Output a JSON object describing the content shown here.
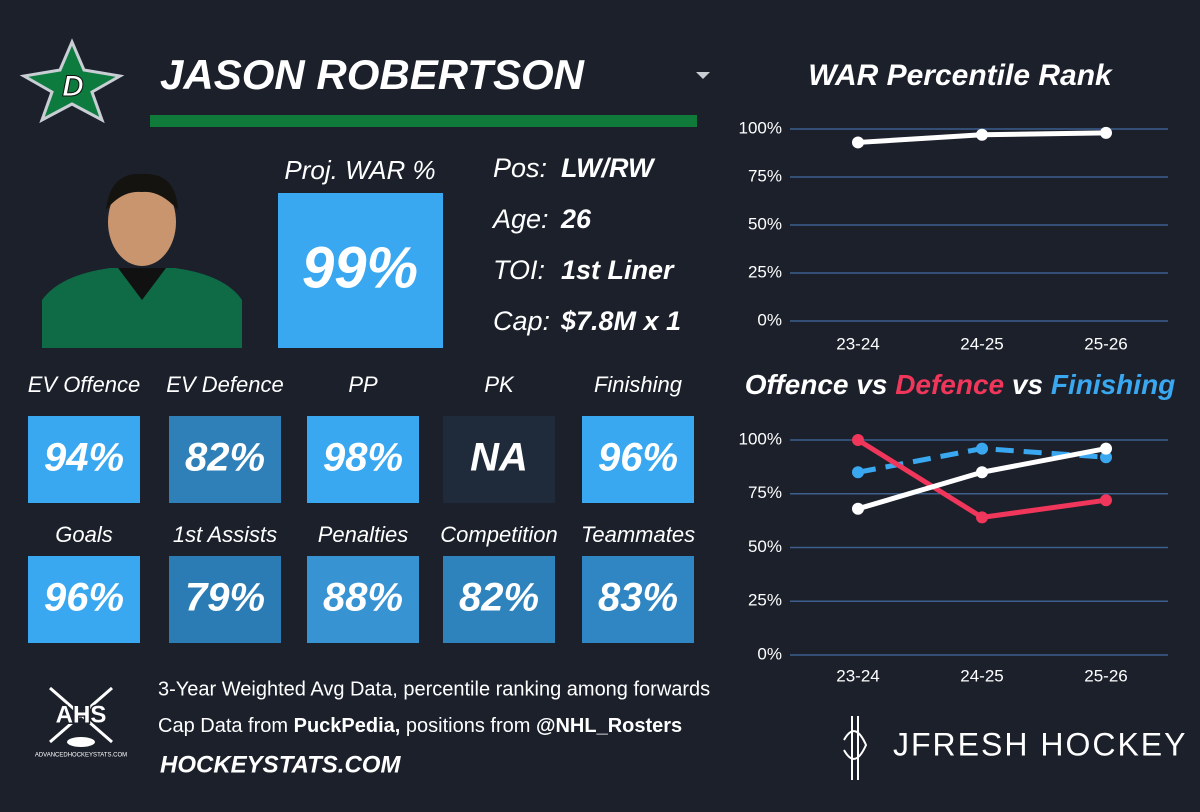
{
  "player": {
    "name": "JASON ROBERTSON",
    "headline_label": "Proj. WAR %",
    "headline_value": "99%",
    "headline_color": "#3aa8f0",
    "details": [
      {
        "label": "Pos:",
        "value": "LW/RW"
      },
      {
        "label": "Age:",
        "value": "26"
      },
      {
        "label": "TOI:",
        "value": "1st Liner"
      },
      {
        "label": "Cap:",
        "value": "$7.8M x 1"
      }
    ],
    "tiles": [
      {
        "label": "EV Offence",
        "value": "94%",
        "color": "#3aa8f0"
      },
      {
        "label": "EV Defence",
        "value": "82%",
        "color": "#2f80b8"
      },
      {
        "label": "PP",
        "value": "98%",
        "color": "#3aa8f0"
      },
      {
        "label": "PK",
        "value": "NA",
        "color": "#1f2a3a"
      },
      {
        "label": "Finishing",
        "value": "96%",
        "color": "#3aa8f0"
      },
      {
        "label": "Goals",
        "value": "96%",
        "color": "#3aa8f0"
      },
      {
        "label": "1st Assists",
        "value": "79%",
        "color": "#2b7cb5"
      },
      {
        "label": "Penalties",
        "value": "88%",
        "color": "#3893d3"
      },
      {
        "label": "Competition",
        "value": "82%",
        "color": "#2f83bd"
      },
      {
        "label": "Teammates",
        "value": "83%",
        "color": "#2f86c2"
      }
    ]
  },
  "footer": {
    "note": "3-Year Weighted Avg Data, percentile ranking among forwards",
    "cap_prefix": "Cap Data from",
    "cap_source": "PuckPedia,",
    "pos_prefix": "positions from",
    "pos_source": "@NHL_Rosters",
    "site": "HOCKEYSTATS.COM",
    "ahs": "AHS",
    "ahs_site": "ADVANCEDHOCKEYSTATS.COM",
    "brand": "JFRESH HOCKEY"
  },
  "chart_data": [
    {
      "type": "line",
      "title": "WAR Percentile Rank",
      "categories": [
        "23-24",
        "24-25",
        "25-26"
      ],
      "values": [
        93,
        97,
        98
      ],
      "color": "#ffffff",
      "ylim": [
        0,
        100
      ],
      "yticks": [
        {
          "value": 0,
          "label": "0%"
        },
        {
          "value": 25,
          "label": "25%"
        },
        {
          "value": 50,
          "label": "50%"
        },
        {
          "value": 75,
          "label": "75%"
        },
        {
          "value": 100,
          "label": "100%"
        }
      ],
      "grid": true
    },
    {
      "type": "line",
      "title_connector": "vs",
      "categories": [
        "23-24",
        "24-25",
        "25-26"
      ],
      "series": [
        {
          "name": "Offence",
          "color": "#ffffff",
          "values": [
            68,
            85,
            96
          ]
        },
        {
          "name": "Defence",
          "color": "#f0365a",
          "values": [
            100,
            64,
            72
          ]
        },
        {
          "name": "Finishing",
          "color": "#3aa8f0",
          "dash": true,
          "values": [
            85,
            96,
            92
          ]
        }
      ],
      "ylim": [
        0,
        100
      ],
      "yticks": [
        {
          "value": 0,
          "label": "0%"
        },
        {
          "value": 25,
          "label": "25%"
        },
        {
          "value": 50,
          "label": "50%"
        },
        {
          "value": 75,
          "label": "75%"
        },
        {
          "value": 100,
          "label": "100%"
        }
      ],
      "grid": true
    }
  ]
}
